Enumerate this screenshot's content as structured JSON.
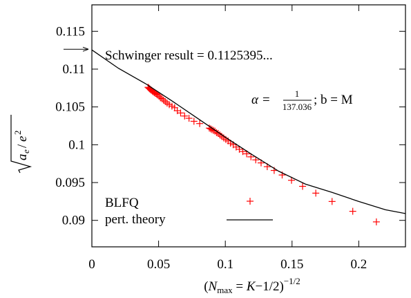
{
  "chart_data": {
    "type": "scatter",
    "xlabel": "(N_max = K−1/2)^−1/2",
    "ylabel": "√(a_e/e²)",
    "xlim": [
      0,
      0.235
    ],
    "ylim": [
      0.0865,
      0.1185
    ],
    "x_ticks": [
      0,
      0.05,
      0.1,
      0.15,
      0.2
    ],
    "x_tick_labels": [
      "0",
      "0.05",
      "0.1",
      "0.15",
      "0.2"
    ],
    "y_ticks": [
      0.09,
      0.095,
      0.1,
      0.105,
      0.11,
      0.115
    ],
    "y_tick_labels": [
      "0.09",
      "0.095",
      "0.1",
      "0.105",
      "0.11",
      "0.115"
    ],
    "grid": false,
    "legend_position": "bottom-left",
    "annotations": {
      "schwinger_text": "Schwinger result = 0.1125395...",
      "schwinger_value": 0.1125395,
      "params_alpha": "α =",
      "params_num": "1",
      "params_den": "137.036",
      "params_b": "; b = M"
    },
    "series": [
      {
        "name": "BLFQ",
        "kind": "points",
        "color": "#ff0000",
        "marker": "plus",
        "points": [
          [
            0.0421,
            0.1076
          ],
          [
            0.0427,
            0.1075
          ],
          [
            0.0433,
            0.1074
          ],
          [
            0.0439,
            0.1073
          ],
          [
            0.0446,
            0.1072
          ],
          [
            0.0453,
            0.1071
          ],
          [
            0.046,
            0.107
          ],
          [
            0.0468,
            0.1069
          ],
          [
            0.0476,
            0.1068
          ],
          [
            0.0485,
            0.1067
          ],
          [
            0.0494,
            0.1066
          ],
          [
            0.0504,
            0.1064
          ],
          [
            0.0514,
            0.1062
          ],
          [
            0.0525,
            0.1061
          ],
          [
            0.0537,
            0.1059
          ],
          [
            0.055,
            0.1057
          ],
          [
            0.0564,
            0.1055
          ],
          [
            0.058,
            0.1053
          ],
          [
            0.06,
            0.1051
          ],
          [
            0.062,
            0.1049
          ],
          [
            0.064,
            0.1045
          ],
          [
            0.0665,
            0.1042
          ],
          [
            0.0695,
            0.1038
          ],
          [
            0.0728,
            0.1035
          ],
          [
            0.0765,
            0.1031
          ],
          [
            0.0808,
            0.1028
          ],
          [
            0.088,
            0.1022
          ],
          [
            0.089,
            0.1021
          ],
          [
            0.09,
            0.102
          ],
          [
            0.0911,
            0.1019
          ],
          [
            0.0922,
            0.1018
          ],
          [
            0.0934,
            0.1016
          ],
          [
            0.0946,
            0.1015
          ],
          [
            0.0959,
            0.1013
          ],
          [
            0.0973,
            0.1011
          ],
          [
            0.0988,
            0.1009
          ],
          [
            0.1004,
            0.1007
          ],
          [
            0.1021,
            0.1005
          ],
          [
            0.1039,
            0.1002
          ],
          [
            0.1059,
            0.1
          ],
          [
            0.1081,
            0.0997
          ],
          [
            0.1105,
            0.0994
          ],
          [
            0.1131,
            0.0991
          ],
          [
            0.116,
            0.0988
          ],
          [
            0.1192,
            0.0984
          ],
          [
            0.1228,
            0.098
          ],
          [
            0.1268,
            0.0976
          ],
          [
            0.1314,
            0.0971
          ],
          [
            0.1366,
            0.0966
          ],
          [
            0.1426,
            0.096
          ],
          [
            0.1496,
            0.0953
          ],
          [
            0.1579,
            0.0945
          ],
          [
            0.1678,
            0.0936
          ],
          [
            0.18,
            0.0925
          ],
          [
            0.1955,
            0.0912
          ],
          [
            0.2132,
            0.0898
          ]
        ]
      },
      {
        "name": "pert. theory",
        "kind": "line",
        "color": "#000000",
        "points": [
          [
            0,
            0.11254
          ],
          [
            0.02,
            0.1101
          ],
          [
            0.04,
            0.1081
          ],
          [
            0.06,
            0.1058
          ],
          [
            0.08,
            0.1034
          ],
          [
            0.1,
            0.101
          ],
          [
            0.12,
            0.0987
          ],
          [
            0.14,
            0.0965
          ],
          [
            0.16,
            0.0948
          ],
          [
            0.18,
            0.0937
          ],
          [
            0.2,
            0.0925
          ],
          [
            0.22,
            0.0914
          ],
          [
            0.235,
            0.0909
          ]
        ]
      }
    ]
  }
}
